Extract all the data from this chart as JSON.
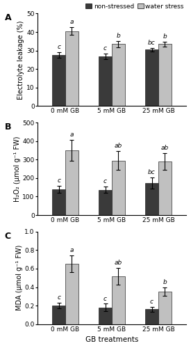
{
  "panel_A": {
    "label": "A",
    "ylabel": "Electrolyte leakage (%)",
    "ylim": [
      0,
      50
    ],
    "yticks": [
      0,
      10,
      20,
      30,
      40,
      50
    ],
    "categories": [
      "0 mM GB",
      "5 mM GB",
      "25 mM GB"
    ],
    "non_stressed_values": [
      27.5,
      27.0,
      30.5
    ],
    "non_stressed_errors": [
      1.5,
      1.5,
      1.0
    ],
    "water_stress_values": [
      40.5,
      33.5,
      33.5
    ],
    "water_stress_errors": [
      2.0,
      1.8,
      1.2
    ],
    "ns_letters": [
      "c",
      "c",
      "bc"
    ],
    "ws_letters": [
      "a",
      "b",
      "b"
    ]
  },
  "panel_B": {
    "label": "B",
    "ylabel": "H₂O₂ (μmol g⁻¹ FW)",
    "ylim": [
      0,
      500
    ],
    "yticks": [
      0,
      100,
      200,
      300,
      400,
      500
    ],
    "categories": [
      "0 mM GB",
      "5 mM GB",
      "25 mM GB"
    ],
    "non_stressed_values": [
      140,
      137,
      175
    ],
    "non_stressed_errors": [
      20,
      18,
      30
    ],
    "water_stress_values": [
      350,
      295,
      290
    ],
    "water_stress_errors": [
      55,
      50,
      45
    ],
    "ns_letters": [
      "c",
      "c",
      "bc"
    ],
    "ws_letters": [
      "a",
      "ab",
      "ab"
    ]
  },
  "panel_C": {
    "label": "C",
    "ylabel": "MDA (μmol g⁻¹ FW)",
    "ylim": [
      0,
      1
    ],
    "yticks": [
      0,
      0.2,
      0.4,
      0.6,
      0.8,
      1.0
    ],
    "categories": [
      "0 mM GB",
      "5 mM GB",
      "25 mM GB"
    ],
    "non_stressed_values": [
      0.2,
      0.18,
      0.16
    ],
    "non_stressed_errors": [
      0.03,
      0.04,
      0.025
    ],
    "water_stress_values": [
      0.65,
      0.52,
      0.35
    ],
    "water_stress_errors": [
      0.09,
      0.09,
      0.045
    ],
    "ns_letters": [
      "c",
      "c",
      "c"
    ],
    "ws_letters": [
      "a",
      "ab",
      "b"
    ]
  },
  "xlabel": "GB treatments",
  "bar_width": 0.28,
  "non_stressed_color": "#3a3a3a",
  "water_stress_color": "#c0c0c0",
  "legend_labels": [
    "non-stressed",
    "water stress"
  ],
  "letter_fontsize": 6.5,
  "label_fontsize": 7,
  "tick_fontsize": 6.5,
  "panel_label_fontsize": 9
}
